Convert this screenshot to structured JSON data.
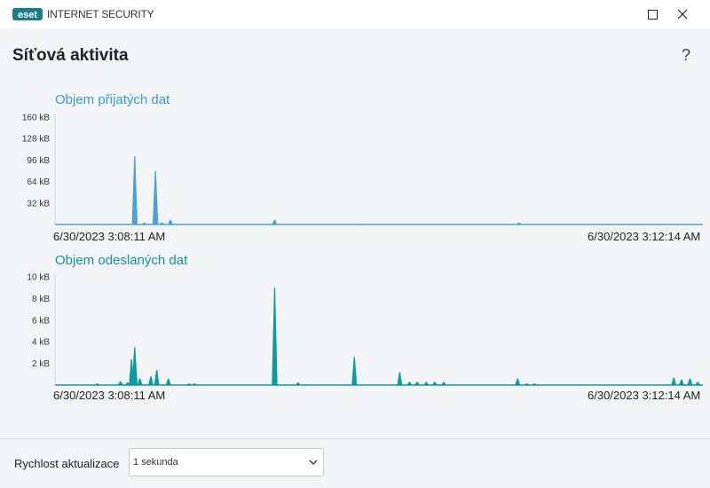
{
  "app": {
    "brand": "eset",
    "name": "INTERNET SECURITY"
  },
  "window_controls": {
    "maximize_icon": "maximize-icon",
    "close_icon": "close-icon"
  },
  "page": {
    "title": "Síťová aktivita",
    "help": "?"
  },
  "charts": {
    "received": {
      "title": "Objem přijatých dat",
      "start_time": "6/30/2023 3:08:11 AM",
      "end_time": "6/30/2023 3:12:14 AM"
    },
    "sent": {
      "title": "Objem odeslaných dat",
      "start_time": "6/30/2023 3:08:11 AM",
      "end_time": "6/30/2023 3:12:14 AM"
    }
  },
  "chart_data": [
    {
      "type": "area",
      "title": "Objem přijatých dat",
      "color": "#4aa3d8",
      "y_unit": "kB",
      "ylim": [
        0,
        160
      ],
      "y_ticks": [
        "160 kB",
        "128 kB",
        "96 kB",
        "64 kB",
        "32 kB"
      ],
      "y_tick_values": [
        160,
        128,
        96,
        64,
        32
      ],
      "x_start": "6/30/2023 3:08:11 AM",
      "x_end": "6/30/2023 3:12:14 AM",
      "peaks": [
        {
          "t": 0.123,
          "v": 102
        },
        {
          "t": 0.138,
          "v": 3
        },
        {
          "t": 0.155,
          "v": 80
        },
        {
          "t": 0.165,
          "v": 3
        },
        {
          "t": 0.178,
          "v": 7
        },
        {
          "t": 0.339,
          "v": 7
        },
        {
          "t": 0.466,
          "v": 1
        },
        {
          "t": 0.716,
          "v": 3
        }
      ]
    },
    {
      "type": "area",
      "title": "Objem odeslaných dat",
      "color": "#0f9aa0",
      "y_unit": "kB",
      "ylim": [
        0,
        10
      ],
      "y_ticks": [
        "10 kB",
        "8 kB",
        "6 kB",
        "4 kB",
        "2 kB"
      ],
      "y_tick_values": [
        10,
        8,
        6,
        4,
        2
      ],
      "x_start": "6/30/2023 3:08:11 AM",
      "x_end": "6/30/2023 3:12:14 AM",
      "peaks": [
        {
          "t": 0.065,
          "v": 0.15
        },
        {
          "t": 0.101,
          "v": 0.35
        },
        {
          "t": 0.112,
          "v": 0.25
        },
        {
          "t": 0.118,
          "v": 2.4
        },
        {
          "t": 0.123,
          "v": 3.5
        },
        {
          "t": 0.131,
          "v": 0.6
        },
        {
          "t": 0.148,
          "v": 0.8
        },
        {
          "t": 0.157,
          "v": 1.4
        },
        {
          "t": 0.175,
          "v": 0.6
        },
        {
          "t": 0.207,
          "v": 0.15
        },
        {
          "t": 0.215,
          "v": 0.15
        },
        {
          "t": 0.339,
          "v": 9.0
        },
        {
          "t": 0.375,
          "v": 0.25
        },
        {
          "t": 0.462,
          "v": 2.6
        },
        {
          "t": 0.532,
          "v": 1.2
        },
        {
          "t": 0.547,
          "v": 0.3
        },
        {
          "t": 0.559,
          "v": 0.3
        },
        {
          "t": 0.573,
          "v": 0.3
        },
        {
          "t": 0.586,
          "v": 0.3
        },
        {
          "t": 0.6,
          "v": 0.3
        },
        {
          "t": 0.714,
          "v": 0.6
        },
        {
          "t": 0.728,
          "v": 0.15
        },
        {
          "t": 0.74,
          "v": 0.15
        },
        {
          "t": 0.955,
          "v": 0.7
        },
        {
          "t": 0.967,
          "v": 0.5
        },
        {
          "t": 0.98,
          "v": 0.6
        },
        {
          "t": 0.992,
          "v": 0.3
        }
      ]
    }
  ],
  "footer": {
    "update_label": "Rychlost aktualizace",
    "update_value": "1 sekunda",
    "chevron_icon": "chevron-down-icon"
  }
}
